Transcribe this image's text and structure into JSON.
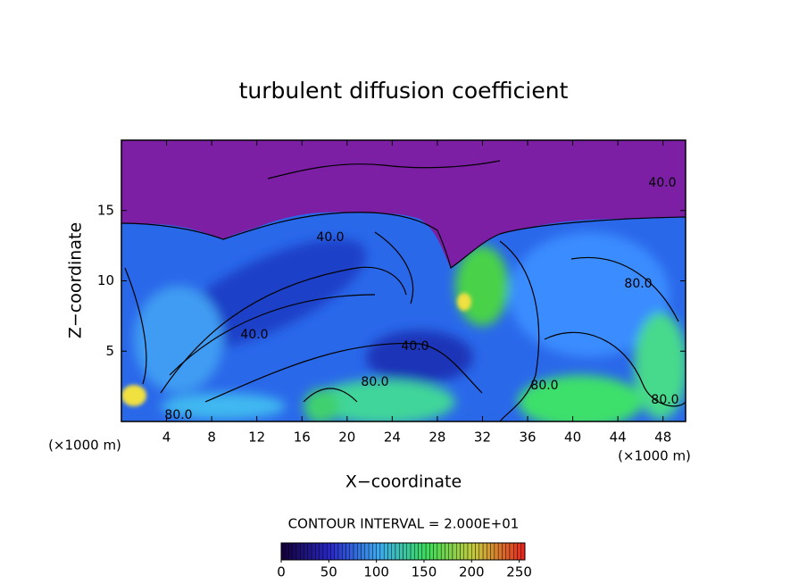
{
  "chart_data": {
    "type": "contour",
    "title": "turbulent diffusion coefficient",
    "xlabel": "X−coordinate",
    "ylabel": "Z−coordinate",
    "x_unit_labels": [
      "(×1000 m)",
      "(×1000 m)"
    ],
    "xlim": [
      0,
      50
    ],
    "ylim": [
      0,
      20
    ],
    "xticks": [
      4,
      8,
      12,
      16,
      20,
      24,
      28,
      32,
      36,
      40,
      44,
      48
    ],
    "yticks": [
      5,
      10,
      15
    ],
    "contour_interval_text": "CONTOUR INTERVAL = 2.000E+01",
    "contour_labels": [
      {
        "value": 40,
        "label": "40.0"
      },
      {
        "value": 40,
        "label": "40.0"
      },
      {
        "value": 40,
        "label": "40.0"
      },
      {
        "value": 40,
        "label": "40.0"
      },
      {
        "value": 80,
        "label": "80.0"
      },
      {
        "value": 80,
        "label": "80.0"
      },
      {
        "value": 80,
        "label": "80.0"
      },
      {
        "value": 80,
        "label": "80.0"
      },
      {
        "value": 80,
        "label": "80.0"
      }
    ],
    "colorbar": {
      "clim": [
        0,
        256
      ],
      "ticks": [
        0,
        50,
        100,
        150,
        200,
        250
      ]
    }
  }
}
